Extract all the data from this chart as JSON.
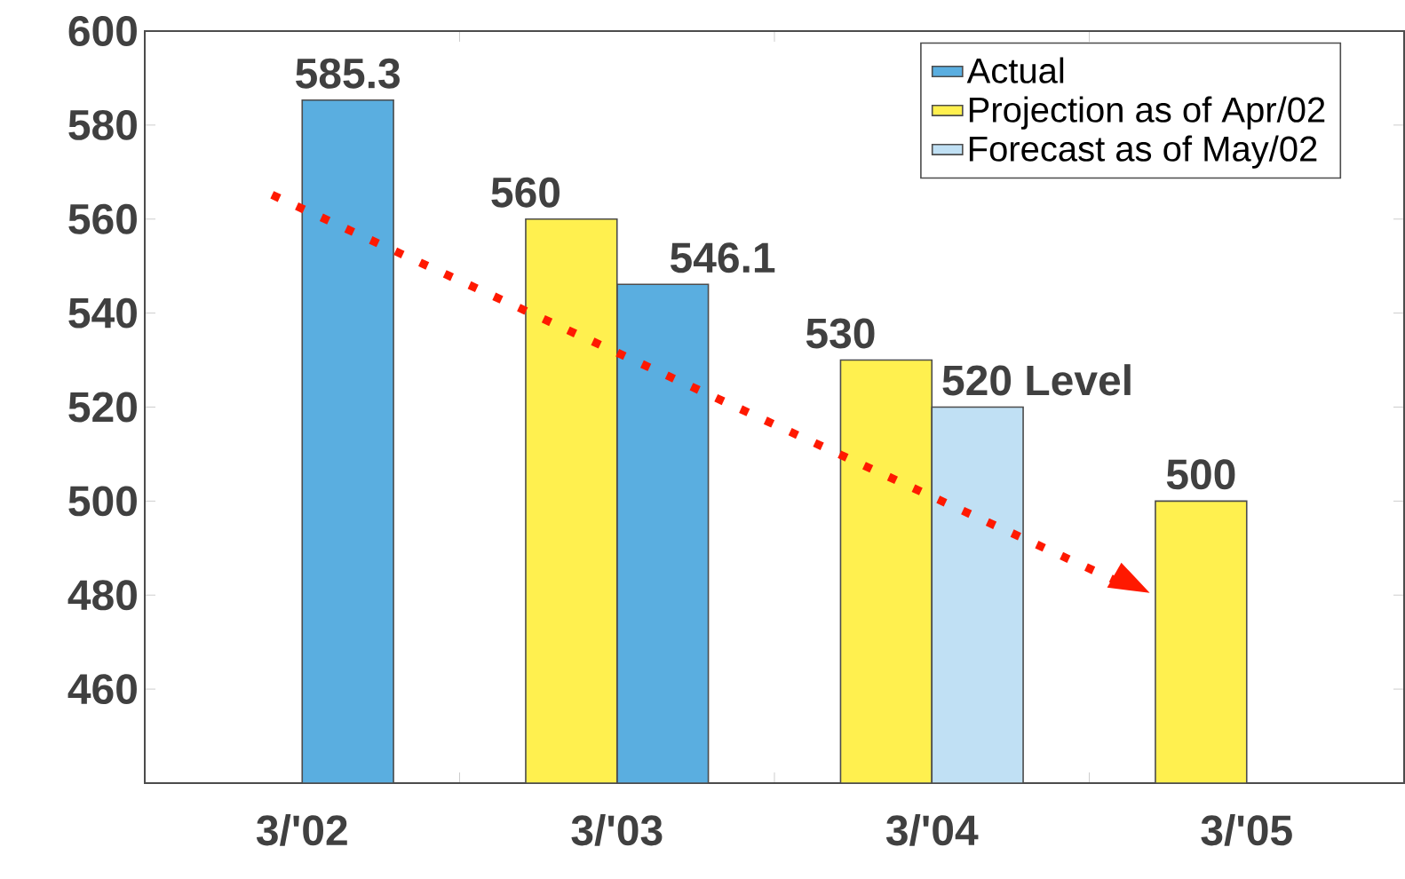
{
  "chart_data": {
    "type": "bar",
    "categories": [
      "3/'02",
      "3/'03",
      "3/'04",
      "3/'05"
    ],
    "series": [
      {
        "name": "Actual",
        "color": "#5aaee0",
        "values": [
          585.3,
          546.1,
          null,
          null
        ],
        "value_labels": [
          "585.3",
          "546.1",
          null,
          null
        ]
      },
      {
        "name": "Projection as of Apr/02",
        "color": "#fff04f",
        "values": [
          null,
          560,
          530,
          500
        ],
        "value_labels": [
          null,
          "560",
          "530",
          "500"
        ]
      },
      {
        "name": "Forecast as of May/02",
        "color": "#c0e0f4",
        "values": [
          null,
          null,
          520,
          null
        ],
        "value_labels": [
          null,
          null,
          "520 Level",
          null
        ]
      }
    ],
    "ylim": [
      440,
      600
    ],
    "yticks": [
      460,
      480,
      500,
      520,
      540,
      560,
      580,
      600
    ],
    "legend": "top right"
  }
}
